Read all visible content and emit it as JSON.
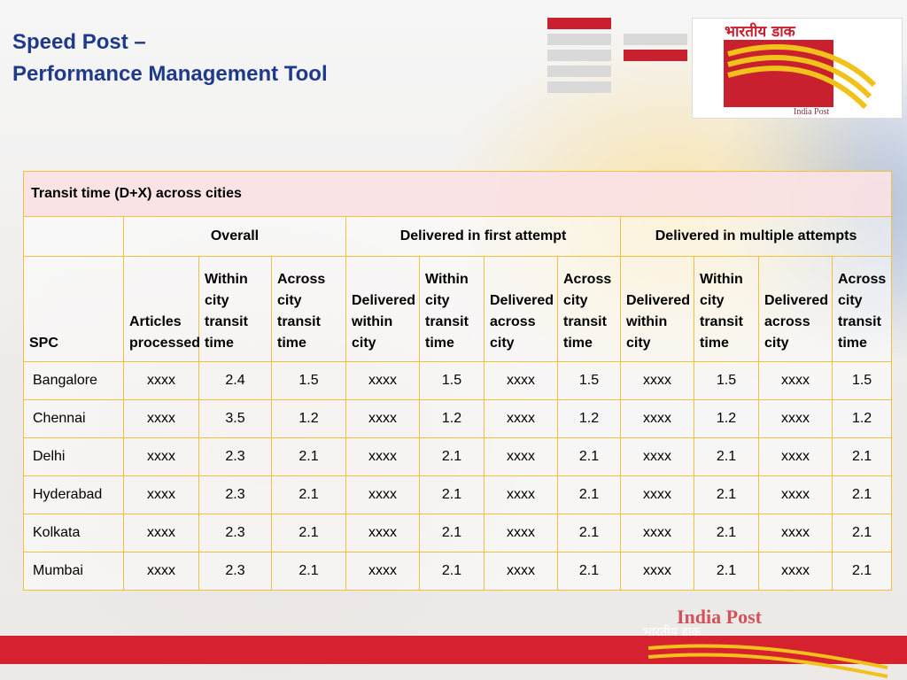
{
  "title": {
    "line1": "Speed Post –",
    "line2": "Performance Management Tool"
  },
  "logo": {
    "hindi": "भारतीय डाक",
    "english": "India Post",
    "brand_color": "#c8202f"
  },
  "table": {
    "caption": "Transit time (D+X) across cities",
    "groups": {
      "overall": "Overall",
      "first_attempt": "Delivered in first attempt",
      "multiple_attempts": "Delivered in multiple attempts"
    },
    "headers": {
      "spc": "SPC",
      "c1": "Articles processed",
      "c2": "Within city transit time",
      "c3": "Across city transit time",
      "c4": "Delivered within city",
      "c5": "Within city transit time",
      "c6": "Delivered across city",
      "c7": "Across city transit time",
      "c8": "Delivered within city",
      "c9": "Within city transit time",
      "c10": "Delivered across city",
      "c11": "Across city transit time"
    },
    "rows": [
      [
        "Bangalore",
        "xxxx",
        "2.4",
        "1.5",
        "xxxx",
        "1.5",
        "xxxx",
        "1.5",
        "xxxx",
        "1.5",
        "xxxx",
        "1.5"
      ],
      [
        "Chennai",
        "xxxx",
        "3.5",
        "1.2",
        "xxxx",
        "1.2",
        "xxxx",
        "1.2",
        "xxxx",
        "1.2",
        "xxxx",
        "1.2"
      ],
      [
        "Delhi",
        "xxxx",
        "2.3",
        "2.1",
        "xxxx",
        "2.1",
        "xxxx",
        "2.1",
        "xxxx",
        "2.1",
        "xxxx",
        "2.1"
      ],
      [
        "Hyderabad",
        "xxxx",
        "2.3",
        "2.1",
        "xxxx",
        "2.1",
        "xxxx",
        "2.1",
        "xxxx",
        "2.1",
        "xxxx",
        "2.1"
      ],
      [
        "Kolkata",
        "xxxx",
        "2.3",
        "2.1",
        "xxxx",
        "2.1",
        "xxxx",
        "2.1",
        "xxxx",
        "2.1",
        "xxxx",
        "2.1"
      ],
      [
        "Mumbai",
        "xxxx",
        "2.3",
        "2.1",
        "xxxx",
        "2.1",
        "xxxx",
        "2.1",
        "xxxx",
        "2.1",
        "xxxx",
        "2.1"
      ]
    ]
  },
  "footer": {
    "english": "India Post",
    "hindi": "भारतीय डाक",
    "band_color": "#d6222f"
  }
}
